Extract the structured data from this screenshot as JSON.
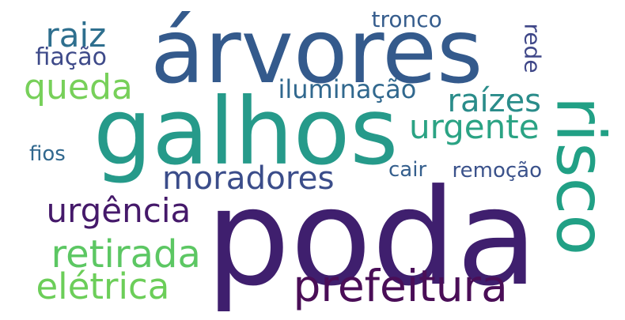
{
  "words": [
    {
      "id": "poda",
      "text": "poda",
      "color": "#3f1f6e"
    },
    {
      "id": "arvores",
      "text": "árvores",
      "color": "#345a8c"
    },
    {
      "id": "galhos",
      "text": "galhos",
      "color": "#269a8a"
    },
    {
      "id": "risco",
      "text": "risco",
      "color": "#21a085"
    },
    {
      "id": "prefeitura",
      "text": "prefeitura",
      "color": "#4a0e57"
    },
    {
      "id": "moradores",
      "text": "moradores",
      "color": "#3b4d8a"
    },
    {
      "id": "urgencia",
      "text": "urgência",
      "color": "#45196a"
    },
    {
      "id": "retirada",
      "text": "retirada",
      "color": "#5cc763"
    },
    {
      "id": "eletrica",
      "text": "elétrica",
      "color": "#6cce59"
    },
    {
      "id": "raiz",
      "text": "raiz",
      "color": "#2e6f8e"
    },
    {
      "id": "queda",
      "text": "queda",
      "color": "#77d05a"
    },
    {
      "id": "raizes",
      "text": "raízes",
      "color": "#2a8c8a"
    },
    {
      "id": "urgente",
      "text": "urgente",
      "color": "#2ba384"
    },
    {
      "id": "iluminacao",
      "text": "iluminação",
      "color": "#31688e"
    },
    {
      "id": "tronco",
      "text": "tronco",
      "color": "#365d8d"
    },
    {
      "id": "fiacao",
      "text": "fiação",
      "color": "#3e4a89"
    },
    {
      "id": "rede",
      "text": "rede",
      "color": "#3f4788"
    },
    {
      "id": "fios",
      "text": "fios",
      "color": "#31688e"
    },
    {
      "id": "cair",
      "text": "cair",
      "color": "#355f8d"
    },
    {
      "id": "remocao",
      "text": "remoção",
      "color": "#3b528b"
    }
  ]
}
